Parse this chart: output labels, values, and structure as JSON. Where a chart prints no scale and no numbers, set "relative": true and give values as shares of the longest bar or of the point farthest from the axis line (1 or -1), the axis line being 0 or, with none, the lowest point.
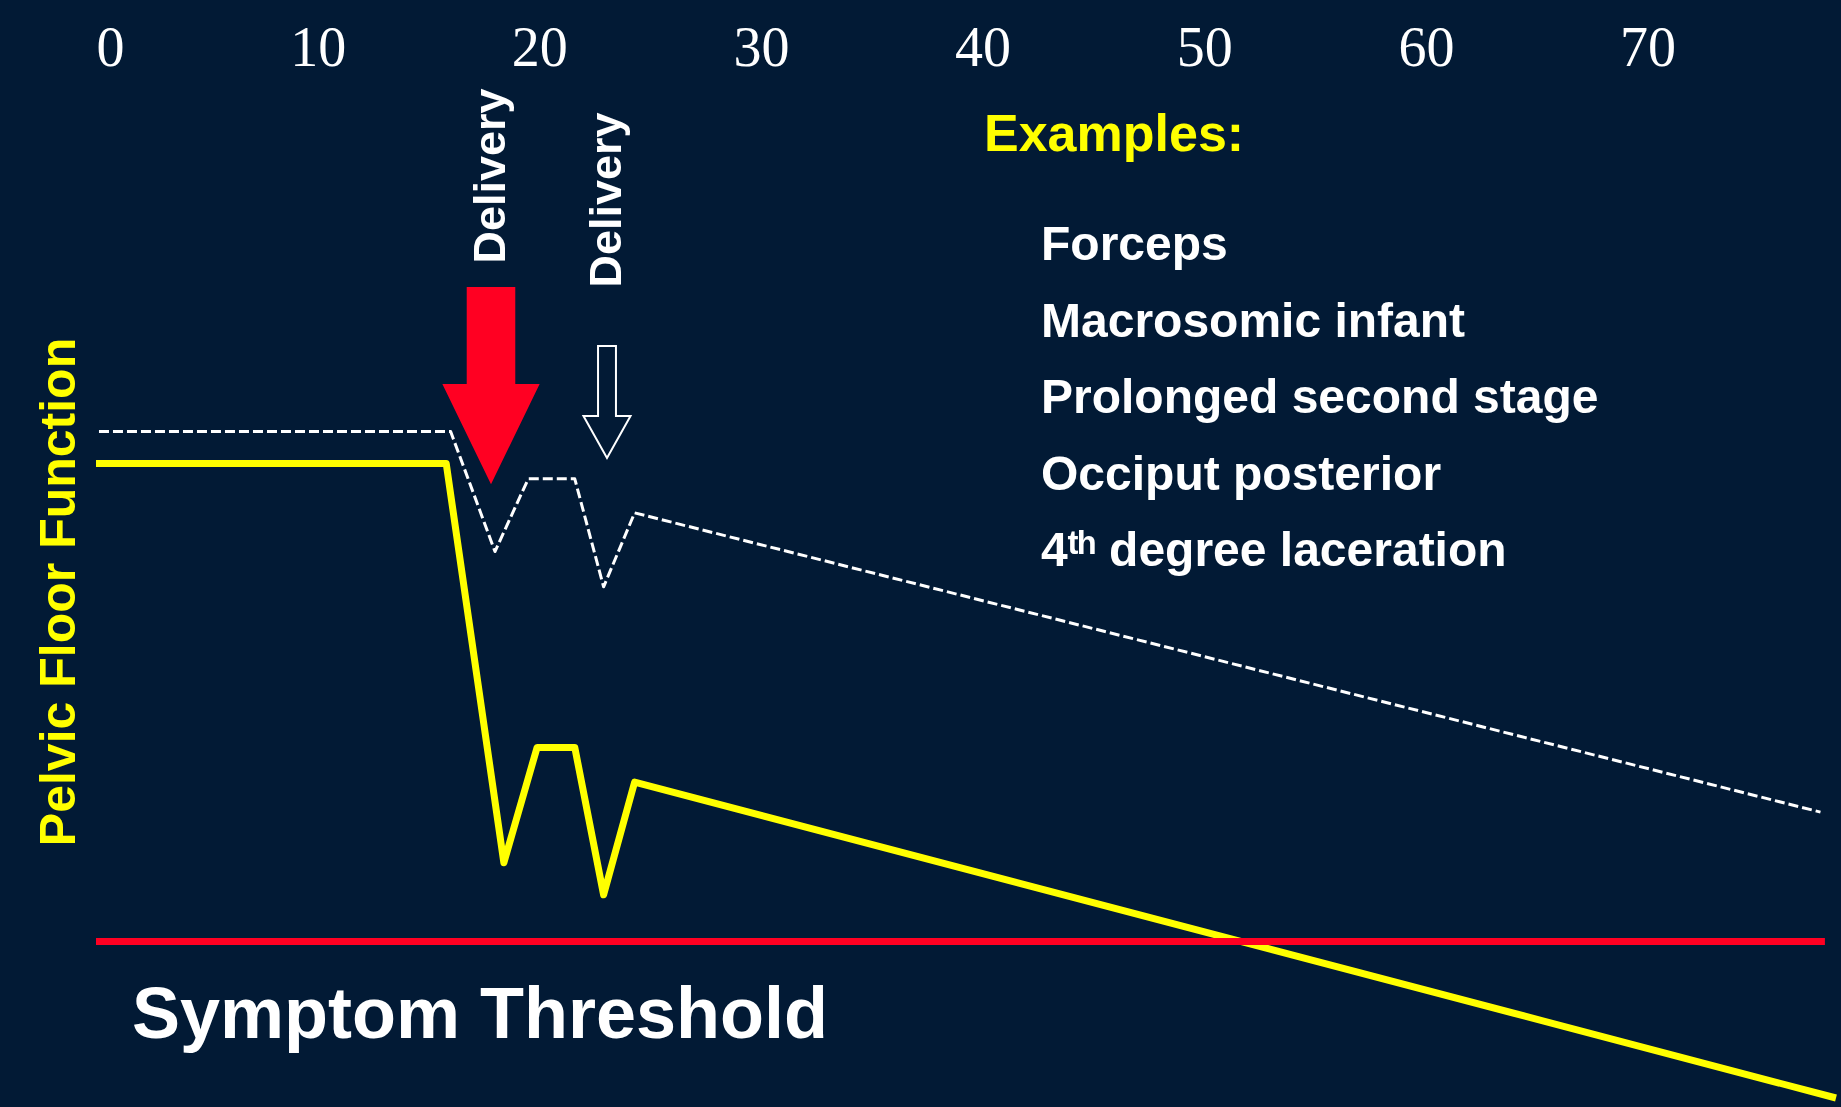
{
  "chart_data": {
    "type": "line",
    "relative": true,
    "ylabel": "Pelvic Floor Function",
    "xlim": [
      0,
      78.5
    ],
    "xticks": [
      0,
      10,
      20,
      30,
      40,
      50,
      60,
      70
    ],
    "series": [
      {
        "color": "#ffff00",
        "line_style": "solid",
        "x": [
          0,
          15.8,
          18.4,
          19.9,
          21.6,
          22.9,
          24.3,
          78.5
        ],
        "values": [
          0.952,
          0.952,
          0.353,
          0.526,
          0.526,
          0.305,
          0.474,
          0
        ]
      },
      {
        "color": "#ffffff",
        "line_style": "dashed",
        "x": [
          0,
          16.0,
          18.0,
          19.5,
          21.6,
          22.9,
          24.3,
          77.8
        ],
        "values": [
          1,
          1,
          0.82,
          0.929,
          0.929,
          0.767,
          0.878,
          0.429
        ]
      }
    ],
    "ref_lines": [
      {
        "axis": "y",
        "value": 0.235,
        "label": "Symptom Threshold",
        "color": "#ff0022"
      }
    ],
    "annotations": [
      "Delivery",
      "Delivery",
      "Examples:",
      "Forceps",
      "Macrosomic infant",
      "Prolonged second stage",
      "Occiput posterior",
      "4ᵗʰ degree laceration"
    ]
  }
}
